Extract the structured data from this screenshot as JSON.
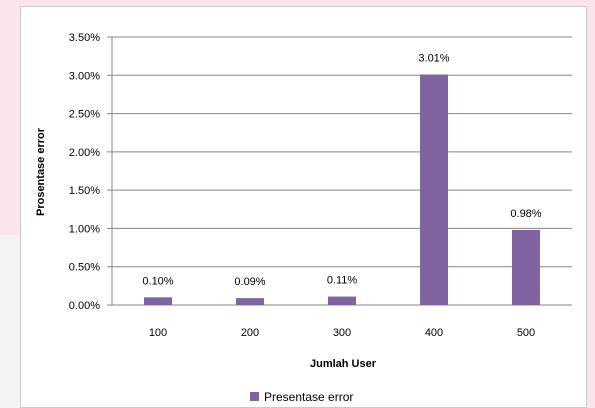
{
  "chart_data": {
    "type": "bar",
    "categories": [
      "100",
      "200",
      "300",
      "400",
      "500"
    ],
    "series": [
      {
        "name": "Presentase error",
        "values": [
          0.1,
          0.09,
          0.11,
          3.01,
          0.98
        ],
        "labels": [
          "0.10%",
          "0.09%",
          "0.11%",
          "3.01%",
          "0.98%"
        ]
      }
    ],
    "xlabel": "Jumlah User",
    "ylabel": "Prosentase error",
    "ylim": [
      0,
      3.5
    ],
    "yticks": [
      "0.00%",
      "0.50%",
      "1.00%",
      "1.50%",
      "2.00%",
      "2.50%",
      "3.00%",
      "3.50%"
    ],
    "grid": true,
    "legend": "bottom",
    "colors": {
      "bar": "#8064a2"
    }
  }
}
